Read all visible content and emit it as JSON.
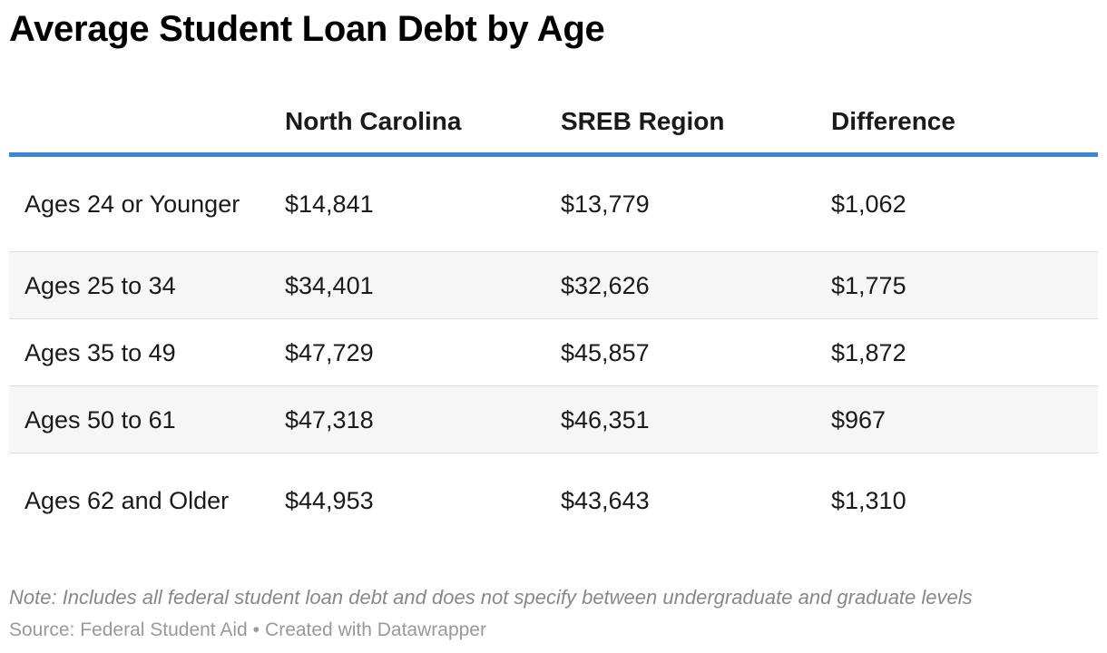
{
  "chart_data": {
    "type": "table",
    "title": "Average Student Loan Debt by Age",
    "columns": [
      "",
      "North Carolina",
      "SREB Region",
      "Difference"
    ],
    "rows": [
      [
        "Ages 24 or Younger",
        "$14,841",
        "$13,779",
        "$1,062"
      ],
      [
        "Ages 25 to 34",
        "$34,401",
        "$32,626",
        "$1,775"
      ],
      [
        "Ages 35 to 49",
        "$47,729",
        "$45,857",
        "$1,872"
      ],
      [
        "Ages 50 to 61",
        "$47,318",
        "$46,351",
        "$967"
      ],
      [
        "Ages 62 and Older",
        "$44,953",
        "$43,643",
        "$1,310"
      ]
    ],
    "note": "Note: Includes all federal student loan debt and does not specify between undergraduate and graduate levels",
    "source": "Source: Federal Student Aid",
    "credit": "Created with Datawrapper",
    "separator": "•"
  },
  "colors": {
    "header_rule": "#3b84d6",
    "alt_row": "#f6f6f6",
    "footnote": "#888888"
  }
}
